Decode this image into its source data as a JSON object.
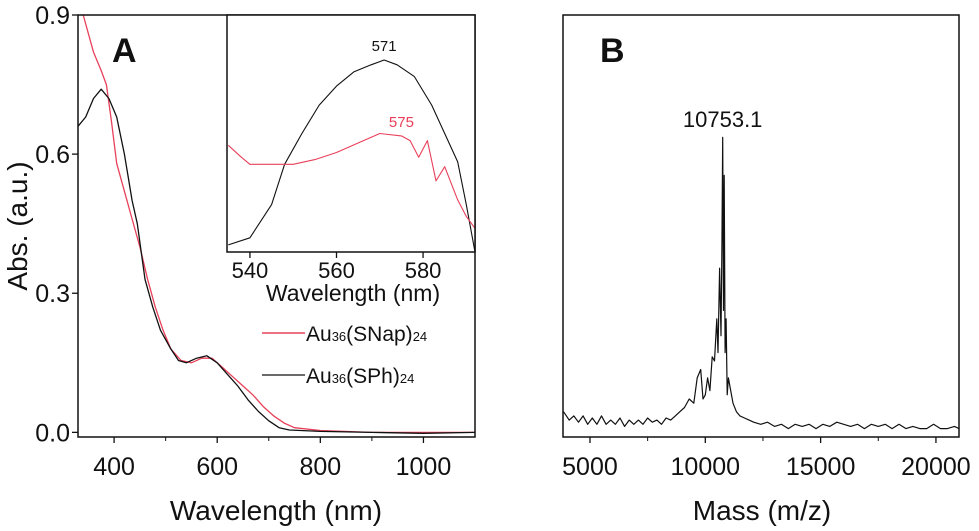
{
  "chart_data": [
    {
      "panel": "A",
      "type": "line",
      "xlabel": "Wavelength (nm)",
      "ylabel": "Abs. (a.u.)",
      "xlim": [
        330,
        1100
      ],
      "ylim": [
        -0.01,
        0.9
      ],
      "xticks": [
        400,
        600,
        800,
        1000
      ],
      "yticks": [
        "0.0",
        "0.3",
        "0.6",
        "0.9"
      ],
      "ytick_values": [
        0,
        0.3,
        0.6,
        0.9
      ],
      "grid": false,
      "legend_placement": "center-right",
      "series": [
        {
          "name": "Au36(SNap)24",
          "label_main": "Au",
          "sub1": "36",
          "mid": "(SNap)",
          "sub2": "24",
          "color": "#e8405a",
          "x": [
            340,
            360,
            375,
            385,
            395,
            405,
            420,
            435,
            450,
            465,
            480,
            495,
            510,
            530,
            550,
            570,
            590,
            610,
            630,
            650,
            670,
            690,
            710,
            730,
            750,
            800,
            900,
            1000,
            1100
          ],
          "y": [
            0.9,
            0.82,
            0.78,
            0.75,
            0.67,
            0.58,
            0.52,
            0.46,
            0.4,
            0.33,
            0.27,
            0.22,
            0.18,
            0.155,
            0.15,
            0.16,
            0.16,
            0.14,
            0.12,
            0.1,
            0.08,
            0.055,
            0.035,
            0.02,
            0.01,
            0.004,
            0.0,
            0.0,
            0.0
          ]
        },
        {
          "name": "Au36(SPh)24",
          "label_main": "Au",
          "sub1": "36",
          "mid": "(SPh)",
          "sub2": "24",
          "color": "#111111",
          "x": [
            330,
            345,
            360,
            375,
            390,
            405,
            420,
            435,
            445,
            460,
            475,
            490,
            510,
            525,
            540,
            560,
            580,
            600,
            620,
            640,
            660,
            680,
            700,
            720,
            740,
            800,
            900,
            1000,
            1100
          ],
          "y": [
            0.66,
            0.68,
            0.72,
            0.74,
            0.72,
            0.68,
            0.6,
            0.5,
            0.45,
            0.33,
            0.27,
            0.22,
            0.18,
            0.155,
            0.15,
            0.16,
            0.165,
            0.15,
            0.125,
            0.1,
            0.07,
            0.045,
            0.025,
            0.01,
            0.005,
            0.002,
            0.0,
            -0.002,
            0.0
          ]
        }
      ]
    },
    {
      "panel": "A-inset",
      "type": "line",
      "xlabel": "Wavelength (nm)",
      "xlim": [
        534.7,
        592
      ],
      "ylim": [
        0,
        1
      ],
      "xticks": [
        540,
        560,
        580
      ],
      "annotations": [
        {
          "text": "571",
          "x": 571,
          "color": "#111111"
        },
        {
          "text": "575",
          "x": 575,
          "color": "#e8405a"
        }
      ],
      "series": [
        {
          "color": "#111111",
          "x": [
            535,
            540,
            545,
            548,
            552,
            556,
            560,
            564,
            568,
            571,
            574,
            578,
            582,
            585,
            588,
            590,
            592
          ],
          "y": [
            0.03,
            0.06,
            0.2,
            0.37,
            0.5,
            0.62,
            0.7,
            0.76,
            0.79,
            0.81,
            0.79,
            0.74,
            0.62,
            0.5,
            0.38,
            0.2,
            0.0
          ]
        },
        {
          "color": "#e8405a",
          "x": [
            535,
            538,
            540,
            545,
            550,
            555,
            560,
            565,
            570,
            575,
            577,
            579,
            581,
            583,
            585,
            588,
            590,
            592
          ],
          "y": [
            0.45,
            0.4,
            0.37,
            0.37,
            0.37,
            0.39,
            0.42,
            0.46,
            0.5,
            0.49,
            0.47,
            0.4,
            0.47,
            0.3,
            0.36,
            0.22,
            0.15,
            0.1
          ]
        }
      ]
    },
    {
      "panel": "B",
      "type": "line",
      "xlabel": "Mass (m/z)",
      "xlim": [
        3830,
        21000
      ],
      "ylim": [
        0,
        1
      ],
      "xticks": [
        5000,
        10000,
        15000,
        20000
      ],
      "annotations": [
        {
          "text": "10753.1",
          "x": 10753.1
        }
      ],
      "series": [
        {
          "color": "#111111",
          "x": [
            3850,
            4100,
            4300,
            4500,
            4700,
            4900,
            5100,
            5300,
            5500,
            5700,
            5900,
            6100,
            6300,
            6500,
            6700,
            6900,
            7100,
            7300,
            7500,
            7700,
            7900,
            8100,
            8300,
            8500,
            8700,
            8900,
            9100,
            9300,
            9500,
            9650,
            9800,
            9900,
            10000,
            10100,
            10200,
            10300,
            10400,
            10500,
            10550,
            10620,
            10680,
            10720,
            10753,
            10790,
            10820,
            10860,
            10900,
            10950,
            11000,
            11100,
            11200,
            11350,
            11500,
            11700,
            11900,
            12100,
            12400,
            12700,
            13000,
            13300,
            13600,
            13900,
            14200,
            14500,
            14800,
            15100,
            15400,
            15700,
            16000,
            16300,
            16600,
            16900,
            17200,
            17500,
            17800,
            18100,
            18400,
            18700,
            19000,
            19300,
            19600,
            19900,
            20200,
            20500,
            20800,
            21000
          ],
          "y": [
            0.06,
            0.04,
            0.05,
            0.035,
            0.05,
            0.03,
            0.045,
            0.03,
            0.05,
            0.03,
            0.04,
            0.03,
            0.045,
            0.025,
            0.04,
            0.03,
            0.04,
            0.03,
            0.045,
            0.035,
            0.04,
            0.03,
            0.045,
            0.04,
            0.05,
            0.06,
            0.07,
            0.09,
            0.08,
            0.14,
            0.16,
            0.09,
            0.1,
            0.14,
            0.11,
            0.19,
            0.18,
            0.28,
            0.2,
            0.4,
            0.24,
            0.45,
            0.71,
            0.3,
            0.62,
            0.2,
            0.28,
            0.1,
            0.14,
            0.11,
            0.08,
            0.06,
            0.05,
            0.045,
            0.04,
            0.035,
            0.03,
            0.035,
            0.025,
            0.03,
            0.02,
            0.03,
            0.025,
            0.03,
            0.02,
            0.03,
            0.025,
            0.035,
            0.03,
            0.025,
            0.03,
            0.02,
            0.03,
            0.025,
            0.03,
            0.02,
            0.03,
            0.02,
            0.025,
            0.02,
            0.02,
            0.03,
            0.02,
            0.02,
            0.025,
            0.02
          ]
        }
      ]
    }
  ]
}
